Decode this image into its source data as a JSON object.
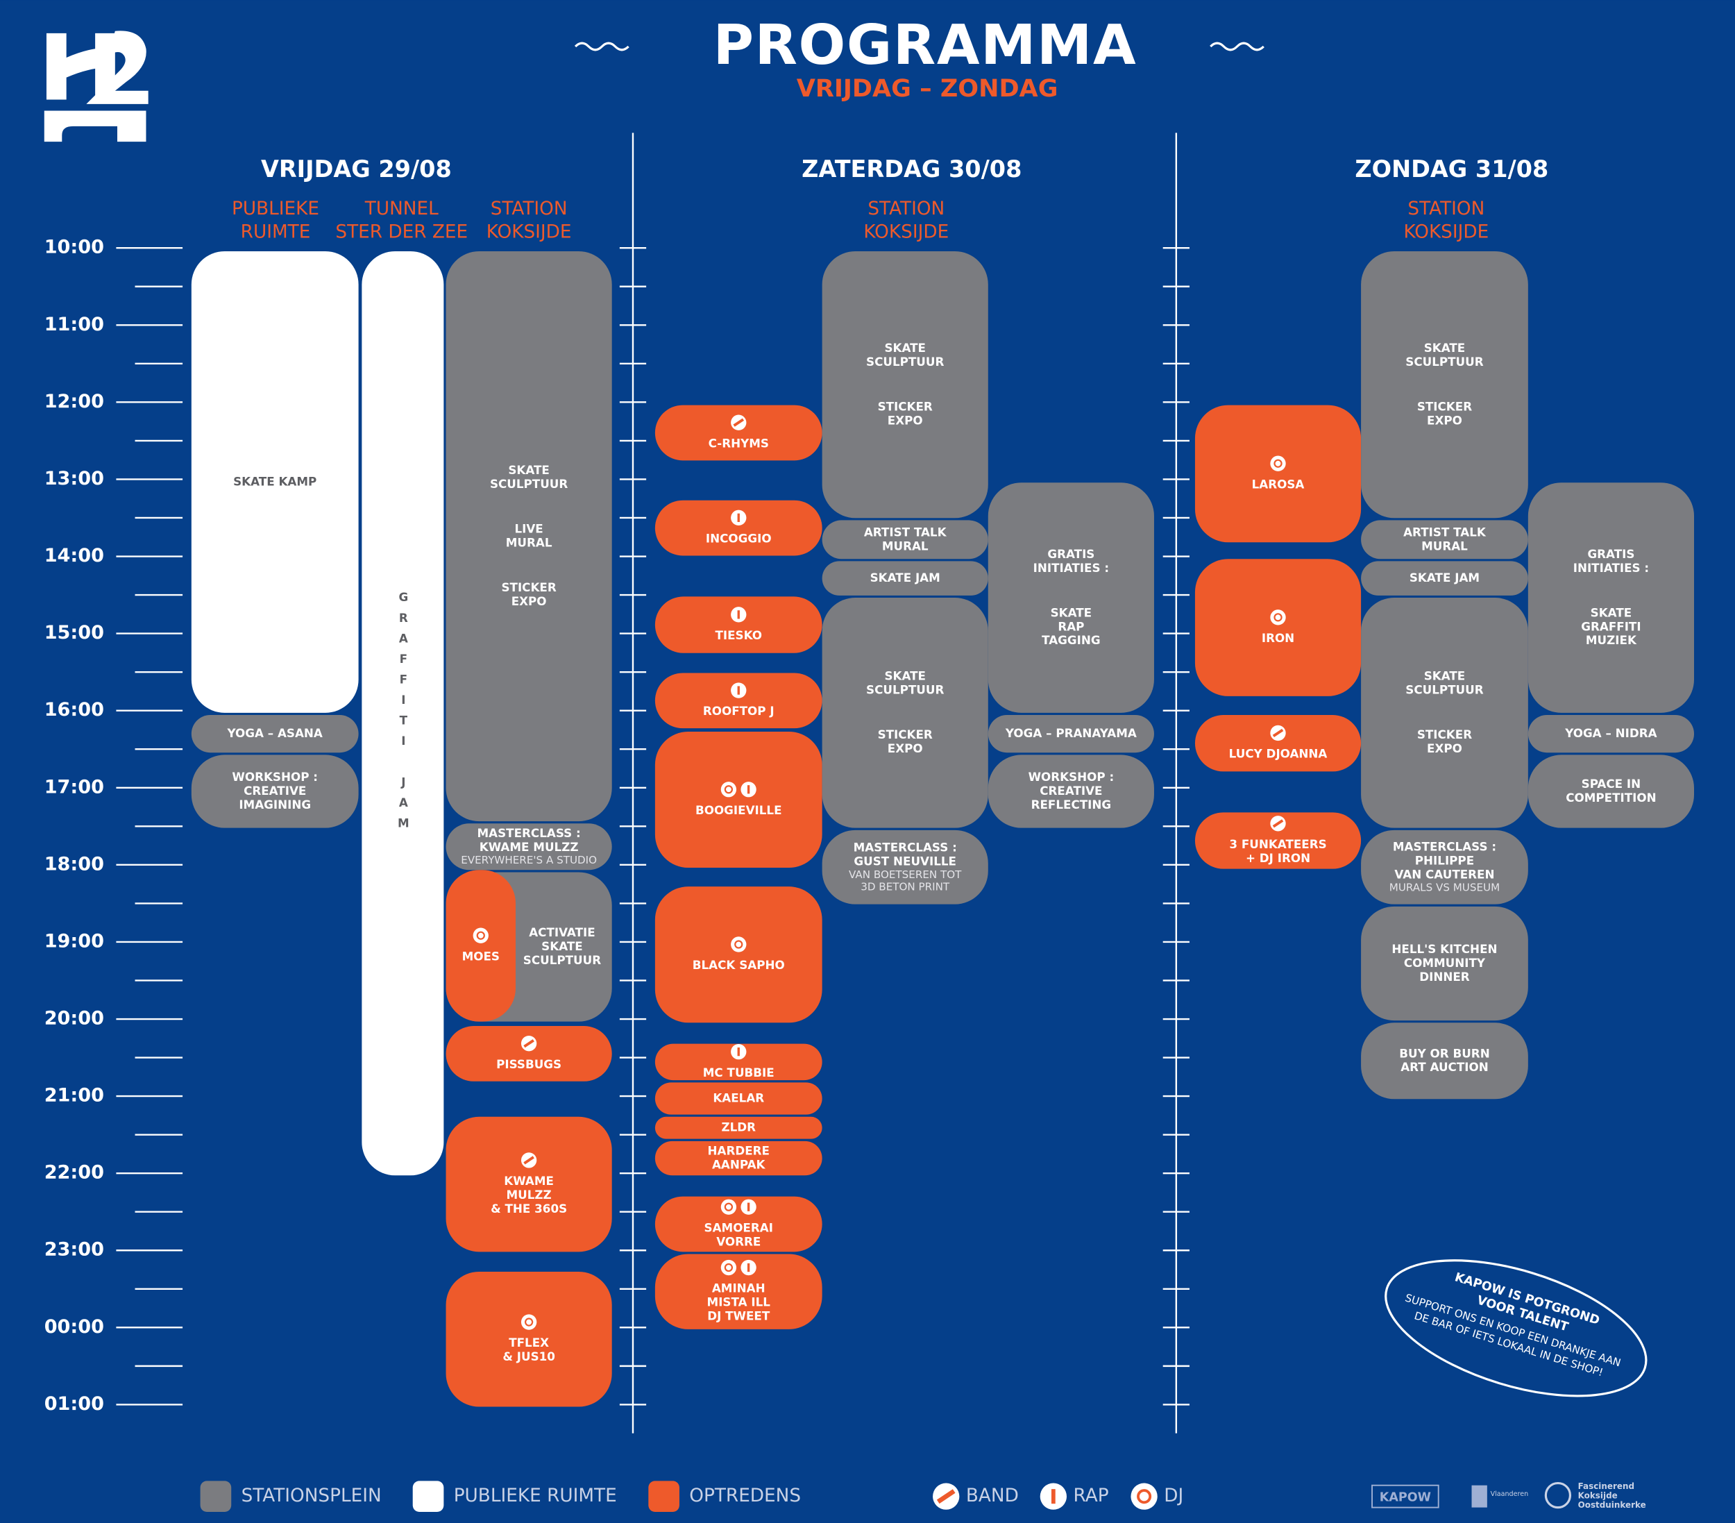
{
  "header": {
    "title": "PROGRAMMA",
    "subtitle": "VRIJDAG – ZONDAG"
  },
  "times": [
    "10:00",
    "11:00",
    "12:00",
    "13:00",
    "14:00",
    "15:00",
    "16:00",
    "17:00",
    "18:00",
    "19:00",
    "20:00",
    "21:00",
    "22:00",
    "23:00",
    "00:00",
    "01:00"
  ],
  "days": [
    {
      "title": "VRIJDAG 29/08",
      "columns": [
        [
          "PUBLIEKE",
          "RUIMTE"
        ],
        [
          "TUNNEL",
          "STER DER ZEE"
        ],
        [
          "STATION",
          "KOKSIJDE"
        ]
      ],
      "events": [
        {
          "groups": [
            [
              "SKATE KAMP"
            ]
          ]
        },
        {
          "groups": [
            [
              "YOGA – ASANA"
            ]
          ]
        },
        {
          "groups": [
            [
              "WORKSHOP :",
              "CREATIVE",
              "IMAGINING"
            ]
          ]
        },
        {
          "groups": [
            [
              "GRAFFITI JAM"
            ]
          ]
        },
        {
          "groups": [
            [
              "SKATE",
              "SCULPTUUR"
            ],
            [
              "LIVE",
              "MURAL"
            ],
            [
              "STICKER",
              "EXPO"
            ]
          ]
        },
        {
          "groups": [
            [
              "MASTERCLASS :",
              "KWAME MULZZ"
            ]
          ],
          "note": [
            "EVERYWHERE'S A STUDIO"
          ]
        },
        {
          "groups": [
            [
              "ACTIVATIE",
              "SKATE",
              "SCULPTUUR"
            ]
          ]
        },
        {
          "groups": [
            [
              "MOES"
            ]
          ]
        },
        {
          "groups": [
            [
              "PISSBUGS"
            ]
          ]
        },
        {
          "groups": [
            [
              "KWAME",
              "MULZZ",
              "& THE 360S"
            ]
          ]
        },
        {
          "groups": [
            [
              "TFLEX",
              "& JUS10"
            ]
          ]
        }
      ]
    },
    {
      "title": "ZATERDAG 30/08",
      "columns": [
        [
          "STATION",
          "KOKSIJDE"
        ]
      ],
      "events": [
        {
          "groups": [
            [
              "C-RHYMS"
            ]
          ]
        },
        {
          "groups": [
            [
              "INCOGGIO"
            ]
          ]
        },
        {
          "groups": [
            [
              "TIESKO"
            ]
          ]
        },
        {
          "groups": [
            [
              "ROOFTOP J"
            ]
          ]
        },
        {
          "groups": [
            [
              "BOOGIEVILLE"
            ]
          ]
        },
        {
          "groups": [
            [
              "BLACK SAPHO"
            ]
          ]
        },
        {
          "groups": [
            [
              "MC TUBBIE"
            ]
          ]
        },
        {
          "groups": [
            [
              "KAELAR"
            ]
          ]
        },
        {
          "groups": [
            [
              "ZLDR"
            ]
          ]
        },
        {
          "groups": [
            [
              "HARDERE",
              "AANPAK"
            ]
          ]
        },
        {
          "groups": [
            [
              "SAMOERAI",
              "VORRE"
            ]
          ]
        },
        {
          "groups": [
            [
              "AMINAH",
              "MISTA ILL",
              "DJ TWEET"
            ]
          ]
        },
        {
          "groups": [
            [
              "SKATE",
              "SCULPTUUR"
            ],
            [
              "STICKER",
              "EXPO"
            ]
          ]
        },
        {
          "groups": [
            [
              "ARTIST TALK",
              "MURAL"
            ]
          ]
        },
        {
          "groups": [
            [
              "SKATE JAM"
            ]
          ]
        },
        {
          "groups": [
            [
              "SKATE",
              "SCULPTUUR"
            ],
            [
              "STICKER",
              "EXPO"
            ]
          ]
        },
        {
          "groups": [
            [
              "MASTERCLASS :",
              "GUST NEUVILLE"
            ]
          ],
          "note": [
            "VAN BOETSEREN TOT",
            "3D BETON PRINT"
          ]
        },
        {
          "groups": [
            [
              "GRATIS",
              "INITIATIES :"
            ],
            [
              "SKATE",
              "RAP",
              "TAGGING"
            ]
          ]
        },
        {
          "groups": [
            [
              "YOGA – PRANAYAMA"
            ]
          ]
        },
        {
          "groups": [
            [
              "WORKSHOP :",
              "CREATIVE",
              "REFLECTING"
            ]
          ]
        }
      ]
    },
    {
      "title": "ZONDAG 31/08",
      "columns": [
        [
          "STATION",
          "KOKSIJDE"
        ]
      ],
      "events": [
        {
          "groups": [
            [
              "LAROSA"
            ]
          ]
        },
        {
          "groups": [
            [
              "IRON"
            ]
          ]
        },
        {
          "groups": [
            [
              "LUCY DJOANNA"
            ]
          ]
        },
        {
          "groups": [
            [
              "3 FUNKATEERS",
              "+ DJ IRON"
            ]
          ]
        },
        {
          "groups": [
            [
              "SKATE",
              "SCULPTUUR"
            ],
            [
              "STICKER",
              "EXPO"
            ]
          ]
        },
        {
          "groups": [
            [
              "ARTIST TALK",
              "MURAL"
            ]
          ]
        },
        {
          "groups": [
            [
              "SKATE JAM"
            ]
          ]
        },
        {
          "groups": [
            [
              "SKATE",
              "SCULPTUUR"
            ],
            [
              "STICKER",
              "EXPO"
            ]
          ]
        },
        {
          "groups": [
            [
              "MASTERCLASS :",
              "PHILIPPE",
              "VAN CAUTEREN"
            ]
          ],
          "note": [
            "MURALS VS MUSEUM"
          ]
        },
        {
          "groups": [
            [
              "HELL'S KITCHEN",
              "COMMUNITY",
              "DINNER"
            ]
          ]
        },
        {
          "groups": [
            [
              "BUY OR BURN",
              "ART AUCTION"
            ]
          ]
        },
        {
          "groups": [
            [
              "GRATIS",
              "INITIATIES :"
            ],
            [
              "SKATE",
              "GRAFFITI",
              "MUZIEK"
            ]
          ]
        },
        {
          "groups": [
            [
              "YOGA – NIDRA"
            ]
          ]
        },
        {
          "groups": [
            [
              "SPACE IN",
              "COMPETITION"
            ]
          ]
        }
      ]
    }
  ],
  "callout": {
    "title": [
      "KAPOW IS POTGROND",
      "VOOR TALENT"
    ],
    "text": [
      "SUPPORT ONS EN KOOP EEN DRANKJE AAN",
      "DE BAR OF IETS LOKAAL IN DE SHOP!"
    ]
  },
  "legend": {
    "areas": [
      "STATIONSPLEIN",
      "PUBLIEKE RUIMTE",
      "OPTREDENS"
    ],
    "icons": [
      "BAND",
      "RAP",
      "DJ"
    ]
  },
  "sponsors": {
    "kapow": "KAPOW",
    "vlaanderen": "Vlaanderen",
    "koksijde": [
      "Fascinerend",
      "Koksijde",
      "Oostduinkerke"
    ]
  }
}
